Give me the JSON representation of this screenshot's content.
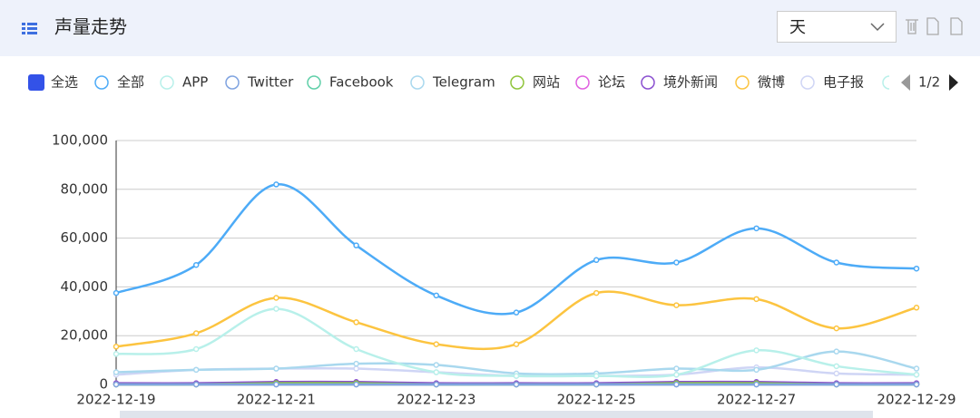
{
  "chart_data": {
    "type": "line",
    "title": "声量走势",
    "granularity": "天",
    "select_all": "全选",
    "legend_page": "1/2",
    "categories": [
      "2022-12-19",
      null,
      "2022-12-21",
      null,
      "2022-12-23",
      null,
      "2022-12-25",
      null,
      "2022-12-27",
      null,
      "2022-12-29"
    ],
    "ylim": [
      0,
      100000
    ],
    "yticks": [
      0,
      {
        "value": 20000,
        "label": "20,000"
      },
      {
        "value": 40000,
        "label": "40,000"
      },
      {
        "value": 60000,
        "label": "60,000"
      },
      {
        "value": 80000,
        "label": "80,000"
      },
      {
        "value": 100000,
        "label": "100,000"
      }
    ],
    "grid": true,
    "smooth": true,
    "series": [
      {
        "name": "全部",
        "color": "#4dabf7",
        "values": [
          37500,
          49000,
          82000,
          57000,
          36500,
          29500,
          51000,
          50000,
          64000,
          50000,
          47500
        ]
      },
      {
        "name": "APP",
        "color": "#b8f0ea",
        "values": [
          12500,
          14500,
          31000,
          14500,
          5000,
          3500,
          3500,
          4000,
          14000,
          7500,
          4000
        ]
      },
      {
        "name": "Twitter",
        "color": "#7fa3e0",
        "values": [
          0,
          0,
          0,
          0,
          0,
          0,
          0,
          0,
          0,
          0,
          0
        ]
      },
      {
        "name": "Facebook",
        "color": "#5fcfa8",
        "values": [
          0,
          0,
          0,
          0,
          0,
          0,
          0,
          0,
          0,
          0,
          0
        ]
      },
      {
        "name": "Telegram",
        "color": "#a9d8ee",
        "values": [
          5000,
          6000,
          6500,
          8500,
          8000,
          4500,
          4500,
          6500,
          6000,
          13500,
          6500
        ]
      },
      {
        "name": "网站",
        "color": "#8fc43a",
        "values": [
          0,
          0,
          500,
          500,
          0,
          0,
          0,
          500,
          500,
          0,
          0
        ]
      },
      {
        "name": "论坛",
        "color": "#e060e0",
        "values": [
          0,
          0,
          0,
          0,
          0,
          0,
          0,
          0,
          0,
          0,
          0
        ]
      },
      {
        "name": "境外新闻",
        "color": "#8a4fd0",
        "values": [
          500,
          500,
          1000,
          1000,
          500,
          500,
          500,
          1000,
          1000,
          500,
          500
        ]
      },
      {
        "name": "微博",
        "color": "#fcc440",
        "values": [
          15500,
          21000,
          35500,
          25500,
          16500,
          16500,
          37500,
          32500,
          35000,
          23000,
          31500
        ]
      },
      {
        "name": "电子报",
        "color": "#cfd5f5",
        "values": [
          4000,
          6000,
          6500,
          6500,
          5000,
          3500,
          3500,
          4000,
          7000,
          4500,
          4000
        ]
      }
    ]
  }
}
